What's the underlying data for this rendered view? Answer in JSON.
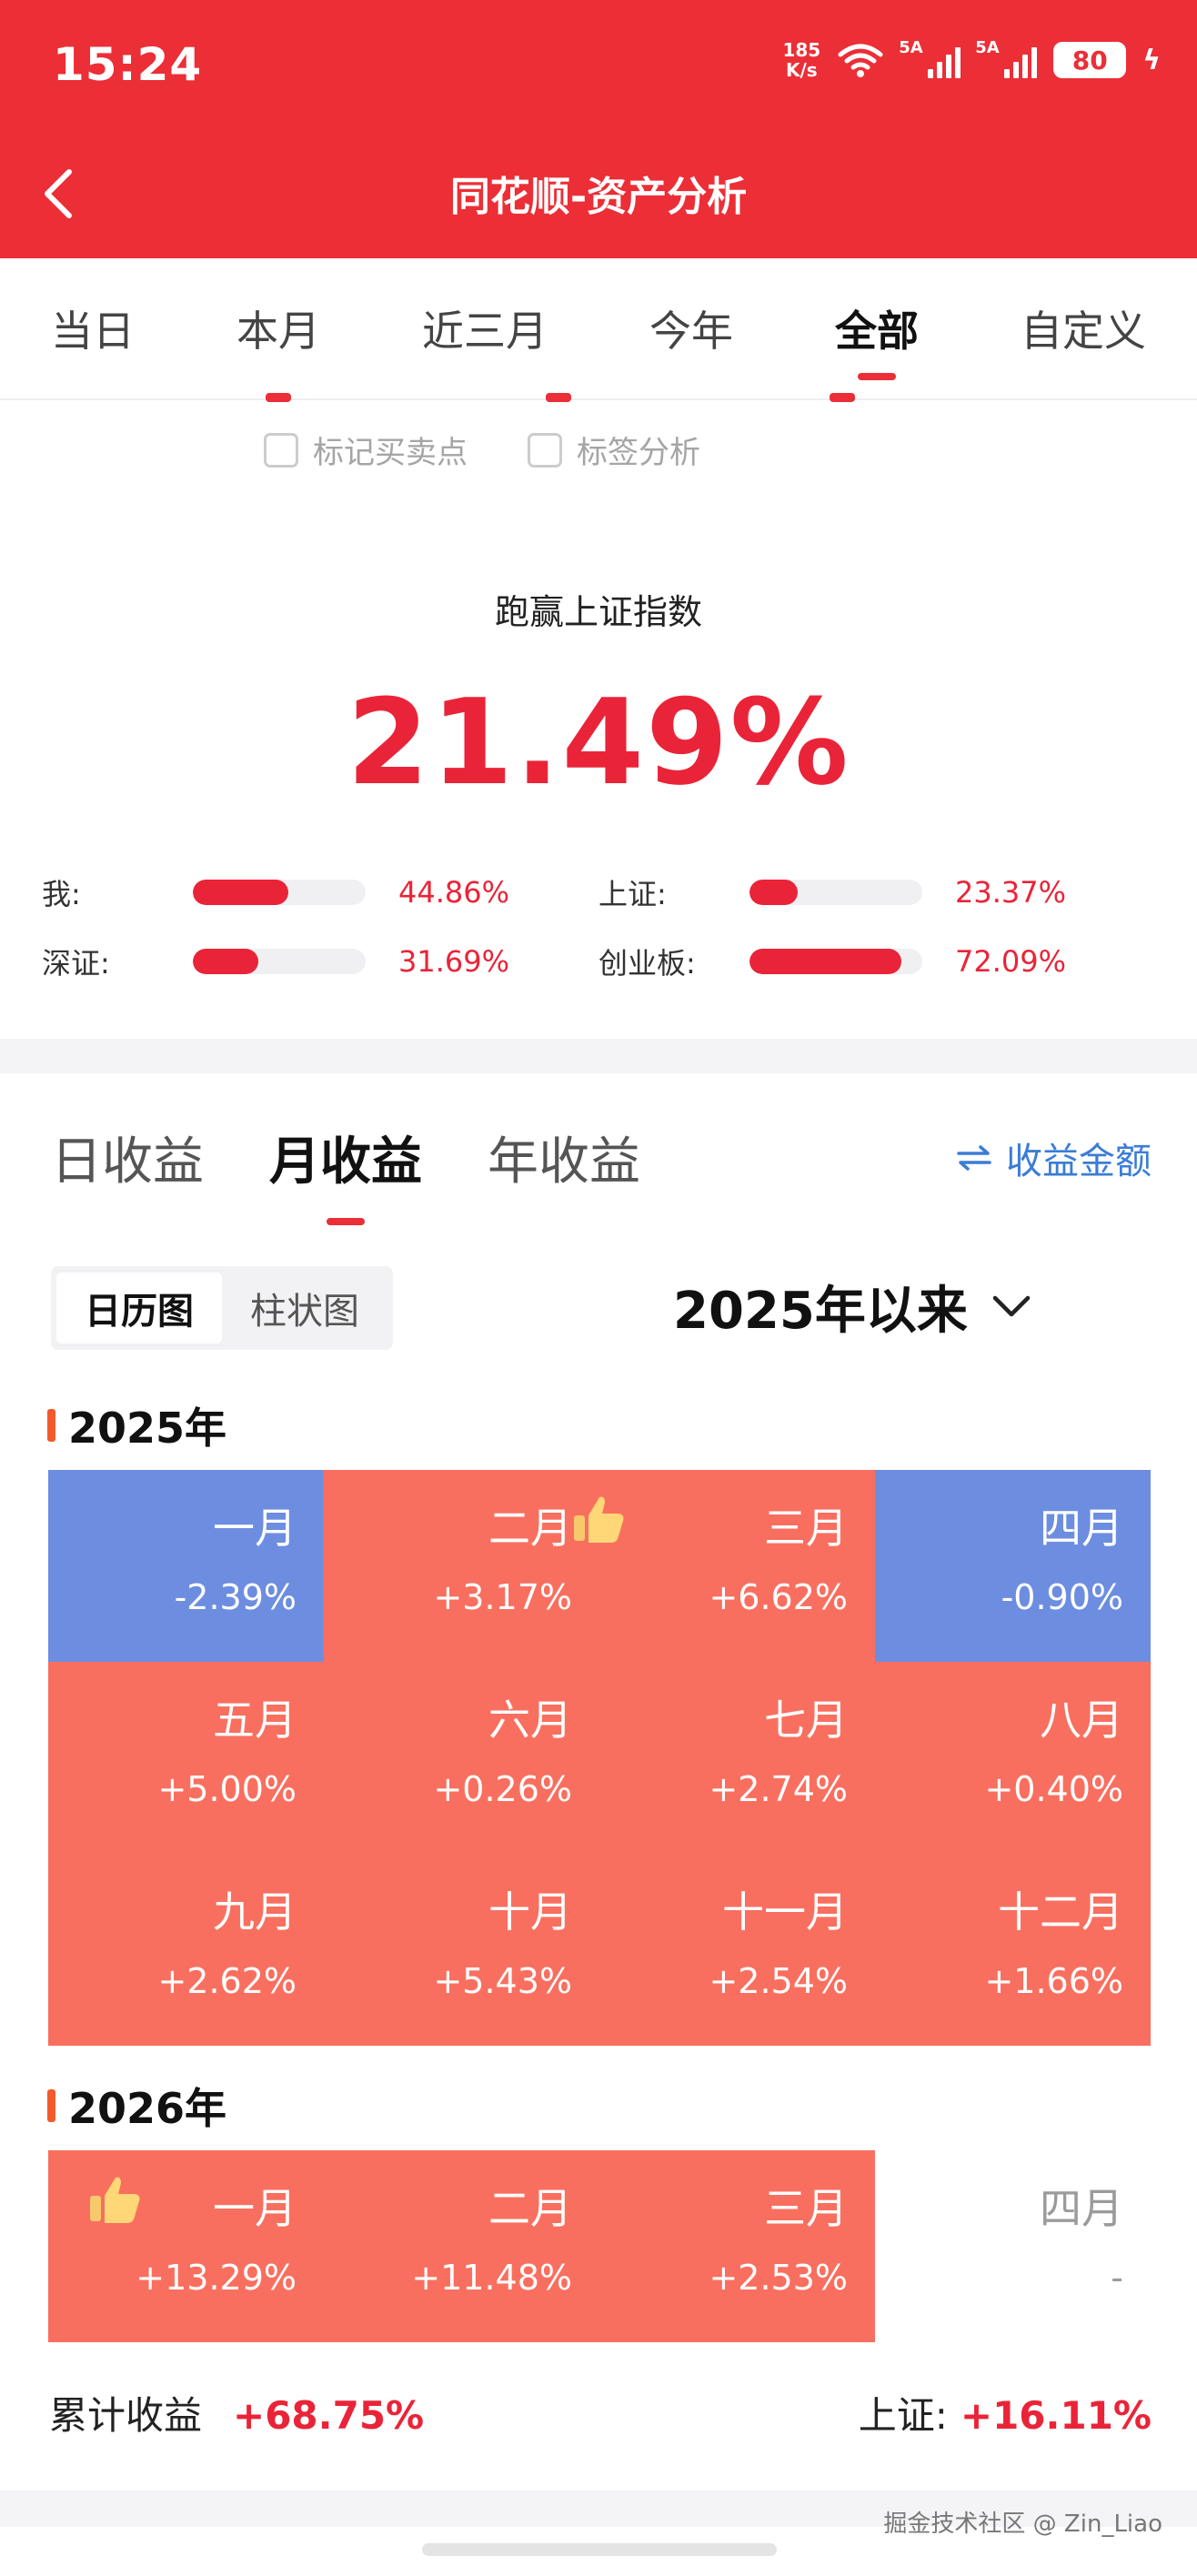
{
  "status_bar": {
    "time": "15:24",
    "net_speed_top": "185",
    "net_speed_bottom": "K/s",
    "sim1": "5A",
    "sim2": "5A",
    "battery": "80"
  },
  "header": {
    "title": "同花顺-资产分析"
  },
  "period_tabs": [
    {
      "label": "当日",
      "active": false
    },
    {
      "label": "本月",
      "active": false
    },
    {
      "label": "近三月",
      "active": false
    },
    {
      "label": "今年",
      "active": false
    },
    {
      "label": "全部",
      "active": true
    },
    {
      "label": "自定义",
      "active": false
    }
  ],
  "options": {
    "mark_trades": "标记买卖点",
    "tag_analysis": "标签分析"
  },
  "beat": {
    "title": "跑赢上证指数",
    "value": "21.49%"
  },
  "comparison": [
    {
      "label": "我:",
      "value": "44.86%",
      "fill": 0.55
    },
    {
      "label": "上证:",
      "value": "23.37%",
      "fill": 0.28
    },
    {
      "label": "深证:",
      "value": "31.69%",
      "fill": 0.38
    },
    {
      "label": "创业板:",
      "value": "72.09%",
      "fill": 0.88
    }
  ],
  "income_tabs": [
    {
      "label": "日收益",
      "active": false
    },
    {
      "label": "月收益",
      "active": true
    },
    {
      "label": "年收益",
      "active": false
    }
  ],
  "amount_toggle": {
    "icon": "swap-arrows-icon",
    "label": "收益金额"
  },
  "view_toggle": {
    "calendar": "日历图",
    "bar": "柱状图"
  },
  "since_select": {
    "label": "2025年以来"
  },
  "colors": {
    "positive": "#f96f5f",
    "negative": "#6d8de1",
    "accent": "#ec2e36"
  },
  "years": [
    {
      "label": "2025年",
      "months": [
        {
          "name": "一月",
          "value": "-2.39%",
          "state": "neg"
        },
        {
          "name": "二月",
          "value": "+3.17%",
          "state": "pos"
        },
        {
          "name": "三月",
          "value": "+6.62%",
          "state": "pos",
          "best": true
        },
        {
          "name": "四月",
          "value": "-0.90%",
          "state": "neg"
        },
        {
          "name": "五月",
          "value": "+5.00%",
          "state": "pos"
        },
        {
          "name": "六月",
          "value": "+0.26%",
          "state": "pos"
        },
        {
          "name": "七月",
          "value": "+2.74%",
          "state": "pos"
        },
        {
          "name": "八月",
          "value": "+0.40%",
          "state": "pos"
        },
        {
          "name": "九月",
          "value": "+2.62%",
          "state": "pos"
        },
        {
          "name": "十月",
          "value": "+5.43%",
          "state": "pos"
        },
        {
          "name": "十一月",
          "value": "+2.54%",
          "state": "pos"
        },
        {
          "name": "十二月",
          "value": "+1.66%",
          "state": "pos"
        }
      ]
    },
    {
      "label": "2026年",
      "months": [
        {
          "name": "一月",
          "value": "+13.29%",
          "state": "pos",
          "best": true
        },
        {
          "name": "二月",
          "value": "+11.48%",
          "state": "pos"
        },
        {
          "name": "三月",
          "value": "+2.53%",
          "state": "pos"
        },
        {
          "name": "四月",
          "value": "-",
          "state": "empty"
        }
      ]
    }
  ],
  "cumulative": {
    "label": "累计收益",
    "value": "+68.75%",
    "index_label": "上证:",
    "index_value": "+16.11%"
  },
  "watermark": "掘金技术社区 @ Zin_Liao"
}
